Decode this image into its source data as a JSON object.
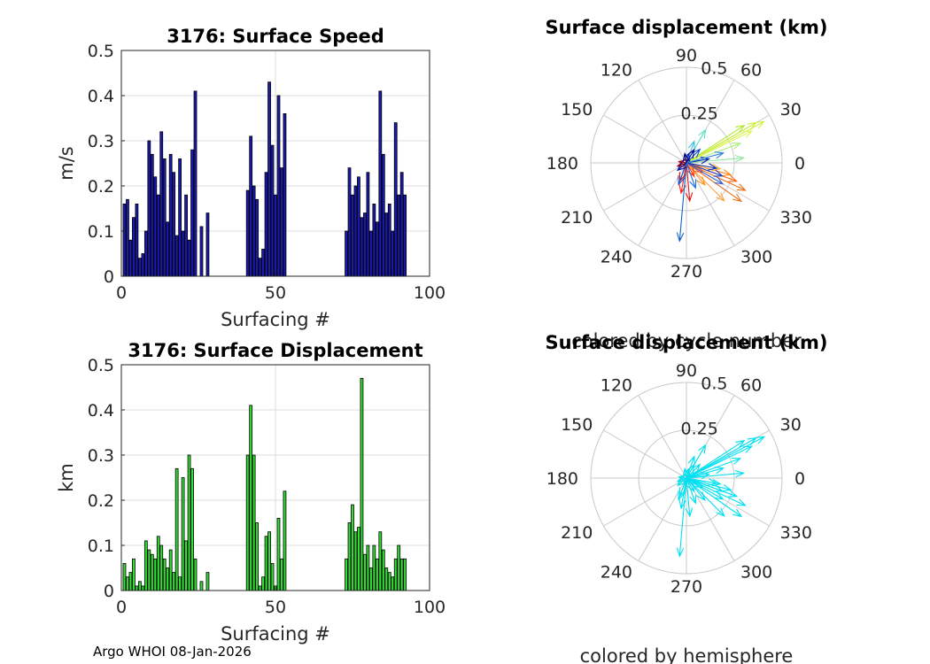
{
  "chart_data": [
    {
      "type": "bar",
      "title": "3176: Surface Speed",
      "xlabel": "Surfacing #",
      "ylabel": "m/s",
      "xlim": [
        0,
        100
      ],
      "ylim": [
        0,
        0.5
      ],
      "xticks": [
        "0",
        "50",
        "100"
      ],
      "yticks": [
        "0",
        "0.1",
        "0.2",
        "0.3",
        "0.4",
        "0.5"
      ],
      "grid": true,
      "color": "#1a1aae",
      "x": [
        1,
        2,
        3,
        4,
        5,
        6,
        7,
        8,
        9,
        10,
        11,
        12,
        13,
        14,
        15,
        16,
        17,
        18,
        19,
        20,
        21,
        22,
        23,
        24,
        26,
        28,
        41,
        42,
        43,
        44,
        45,
        46,
        47,
        48,
        49,
        50,
        51,
        52,
        53,
        73,
        74,
        75,
        76,
        77,
        78,
        79,
        80,
        81,
        82,
        83,
        84,
        85,
        86,
        87,
        88,
        89,
        90,
        91,
        92
      ],
      "values": [
        0.16,
        0.17,
        0.08,
        0.13,
        0.16,
        0.04,
        0.05,
        0.1,
        0.3,
        0.27,
        0.22,
        0.18,
        0.32,
        0.26,
        0.12,
        0.27,
        0.23,
        0.09,
        0.26,
        0.1,
        0.18,
        0.08,
        0.28,
        0.41,
        0.11,
        0.14,
        0.19,
        0.31,
        0.2,
        0.17,
        0.04,
        0.06,
        0.23,
        0.43,
        0.29,
        0.18,
        0.4,
        0.24,
        0.36,
        0.1,
        0.24,
        0.18,
        0.2,
        0.22,
        0.13,
        0.14,
        0.23,
        0.1,
        0.16,
        0.12,
        0.41,
        0.27,
        0.14,
        0.16,
        0.1,
        0.34,
        0.18,
        0.23,
        0.18
      ]
    },
    {
      "type": "bar",
      "title": "3176: Surface Displacement",
      "xlabel": "Surfacing #",
      "ylabel": "km",
      "xlim": [
        0,
        100
      ],
      "ylim": [
        0,
        0.5
      ],
      "xticks": [
        "0",
        "50",
        "100"
      ],
      "yticks": [
        "0",
        "0.1",
        "0.2",
        "0.3",
        "0.4",
        "0.5"
      ],
      "grid": true,
      "color": "#33dd33",
      "x": [
        1,
        2,
        3,
        4,
        5,
        6,
        7,
        8,
        9,
        10,
        11,
        12,
        13,
        14,
        15,
        16,
        17,
        18,
        19,
        20,
        21,
        22,
        23,
        24,
        26,
        28,
        41,
        42,
        43,
        44,
        45,
        46,
        47,
        48,
        49,
        50,
        51,
        52,
        53,
        73,
        74,
        75,
        76,
        77,
        78,
        79,
        80,
        81,
        82,
        83,
        84,
        85,
        86,
        87,
        88,
        89,
        90,
        91,
        92
      ],
      "values": [
        0.06,
        0.03,
        0.04,
        0.07,
        0.01,
        0.02,
        0.01,
        0.11,
        0.09,
        0.08,
        0.07,
        0.12,
        0.1,
        0.07,
        0.05,
        0.09,
        0.04,
        0.27,
        0.03,
        0.25,
        0.11,
        0.3,
        0.27,
        0.07,
        0.02,
        0.04,
        0.3,
        0.41,
        0.3,
        0.15,
        0.01,
        0.03,
        0.12,
        0.13,
        0.06,
        0.01,
        0.16,
        0.07,
        0.22,
        0.07,
        0.15,
        0.19,
        0.13,
        0.14,
        0.47,
        0.08,
        0.1,
        0.05,
        0.1,
        0.07,
        0.13,
        0.09,
        0.05,
        0.04,
        0.03,
        0.07,
        0.1,
        0.07,
        0.07
      ]
    },
    {
      "type": "polar",
      "title": "Surface displacement (km)",
      "xlabel": "colored by cycle number",
      "rlim": [
        0,
        0.5
      ],
      "rticks": [
        "0.25",
        "0.5"
      ],
      "angle_ticks": [
        "0",
        "30",
        "60",
        "90",
        "120",
        "150",
        "180",
        "210",
        "240",
        "270",
        "300",
        "330"
      ],
      "vectors": [
        {
          "angle": 28,
          "r": 0.46,
          "color": "#d4f04a"
        },
        {
          "angle": 30,
          "r": 0.42,
          "color": "#c8ee3c"
        },
        {
          "angle": 26,
          "r": 0.38,
          "color": "#e2f25a"
        },
        {
          "angle": 33,
          "r": 0.36,
          "color": "#b0e830"
        },
        {
          "angle": 20,
          "r": 0.3,
          "color": "#a8f07a"
        },
        {
          "angle": 5,
          "r": 0.3,
          "color": "#8fe8a0"
        },
        {
          "angle": 60,
          "r": 0.2,
          "color": "#5fe0c0"
        },
        {
          "angle": 70,
          "r": 0.12,
          "color": "#40c0e0"
        },
        {
          "angle": 75,
          "r": 0.05,
          "color": "#2040d0"
        },
        {
          "angle": -20,
          "r": 0.28,
          "color": "#ff6a1a"
        },
        {
          "angle": -25,
          "r": 0.34,
          "color": "#f07018"
        },
        {
          "angle": -35,
          "r": 0.35,
          "color": "#e8762a"
        },
        {
          "angle": -45,
          "r": 0.28,
          "color": "#ffa040"
        },
        {
          "angle": -15,
          "r": 0.24,
          "color": "#ff8a20"
        },
        {
          "angle": -10,
          "r": 0.18,
          "color": "#ffb030"
        },
        {
          "angle": -50,
          "r": 0.15,
          "color": "#ff9020"
        },
        {
          "angle": -30,
          "r": 0.1,
          "color": "#ff5020"
        },
        {
          "angle": 260,
          "r": 0.16,
          "color": "#ff2010"
        },
        {
          "angle": 250,
          "r": 0.1,
          "color": "#d01010"
        },
        {
          "angle": 200,
          "r": 0.05,
          "color": "#b00000"
        },
        {
          "angle": 170,
          "r": 0.04,
          "color": "#a00010"
        },
        {
          "angle": -85,
          "r": 0.2,
          "color": "#e01818"
        },
        {
          "angle": -60,
          "r": 0.08,
          "color": "#ff3000"
        },
        {
          "angle": 265,
          "r": 0.41,
          "color": "#1060d0"
        },
        {
          "angle": 250,
          "r": 0.12,
          "color": "#2050c8"
        },
        {
          "angle": -20,
          "r": 0.2,
          "color": "#2040c0"
        },
        {
          "angle": -10,
          "r": 0.16,
          "color": "#1030b0"
        },
        {
          "angle": 10,
          "r": 0.12,
          "color": "#0020a0"
        },
        {
          "angle": 45,
          "r": 0.1,
          "color": "#1050c0"
        },
        {
          "angle": 60,
          "r": 0.08,
          "color": "#000090"
        },
        {
          "angle": -30,
          "r": 0.22,
          "color": "#4060d0"
        },
        {
          "angle": -70,
          "r": 0.14,
          "color": "#2070e0"
        },
        {
          "angle": 15,
          "r": 0.2,
          "color": "#3080e0"
        },
        {
          "angle": 100,
          "r": 0.05,
          "color": "#000080"
        },
        {
          "angle": 220,
          "r": 0.06,
          "color": "#0010a0"
        }
      ]
    },
    {
      "type": "polar",
      "title": "Surface displacement (km)",
      "xlabel": "colored by hemisphere",
      "rlim": [
        0,
        0.5
      ],
      "rticks": [
        "0.25",
        "0.5"
      ],
      "angle_ticks": [
        "0",
        "30",
        "60",
        "90",
        "120",
        "150",
        "180",
        "210",
        "240",
        "270",
        "300",
        "330"
      ],
      "color": "#00e0f0",
      "vectors": [
        {
          "angle": 28,
          "r": 0.46
        },
        {
          "angle": 30,
          "r": 0.42
        },
        {
          "angle": 26,
          "r": 0.38
        },
        {
          "angle": 33,
          "r": 0.36
        },
        {
          "angle": 20,
          "r": 0.3
        },
        {
          "angle": 5,
          "r": 0.3
        },
        {
          "angle": 60,
          "r": 0.2
        },
        {
          "angle": 70,
          "r": 0.12
        },
        {
          "angle": 75,
          "r": 0.05
        },
        {
          "angle": -20,
          "r": 0.28
        },
        {
          "angle": -25,
          "r": 0.34
        },
        {
          "angle": -35,
          "r": 0.35
        },
        {
          "angle": -45,
          "r": 0.28
        },
        {
          "angle": -15,
          "r": 0.24
        },
        {
          "angle": -10,
          "r": 0.18
        },
        {
          "angle": -50,
          "r": 0.15
        },
        {
          "angle": -30,
          "r": 0.1
        },
        {
          "angle": 260,
          "r": 0.16
        },
        {
          "angle": 250,
          "r": 0.1
        },
        {
          "angle": 200,
          "r": 0.05
        },
        {
          "angle": 170,
          "r": 0.04
        },
        {
          "angle": -85,
          "r": 0.2
        },
        {
          "angle": -60,
          "r": 0.08
        },
        {
          "angle": 265,
          "r": 0.41
        },
        {
          "angle": 250,
          "r": 0.12
        },
        {
          "angle": -20,
          "r": 0.2
        },
        {
          "angle": -10,
          "r": 0.16
        },
        {
          "angle": 10,
          "r": 0.12
        },
        {
          "angle": 45,
          "r": 0.1
        },
        {
          "angle": 60,
          "r": 0.08
        },
        {
          "angle": -30,
          "r": 0.22
        },
        {
          "angle": -70,
          "r": 0.14
        },
        {
          "angle": 15,
          "r": 0.2
        },
        {
          "angle": 100,
          "r": 0.05
        },
        {
          "angle": 220,
          "r": 0.06
        }
      ]
    }
  ],
  "footer": {
    "text": "Argo WHOI 08-Jan-2026"
  }
}
